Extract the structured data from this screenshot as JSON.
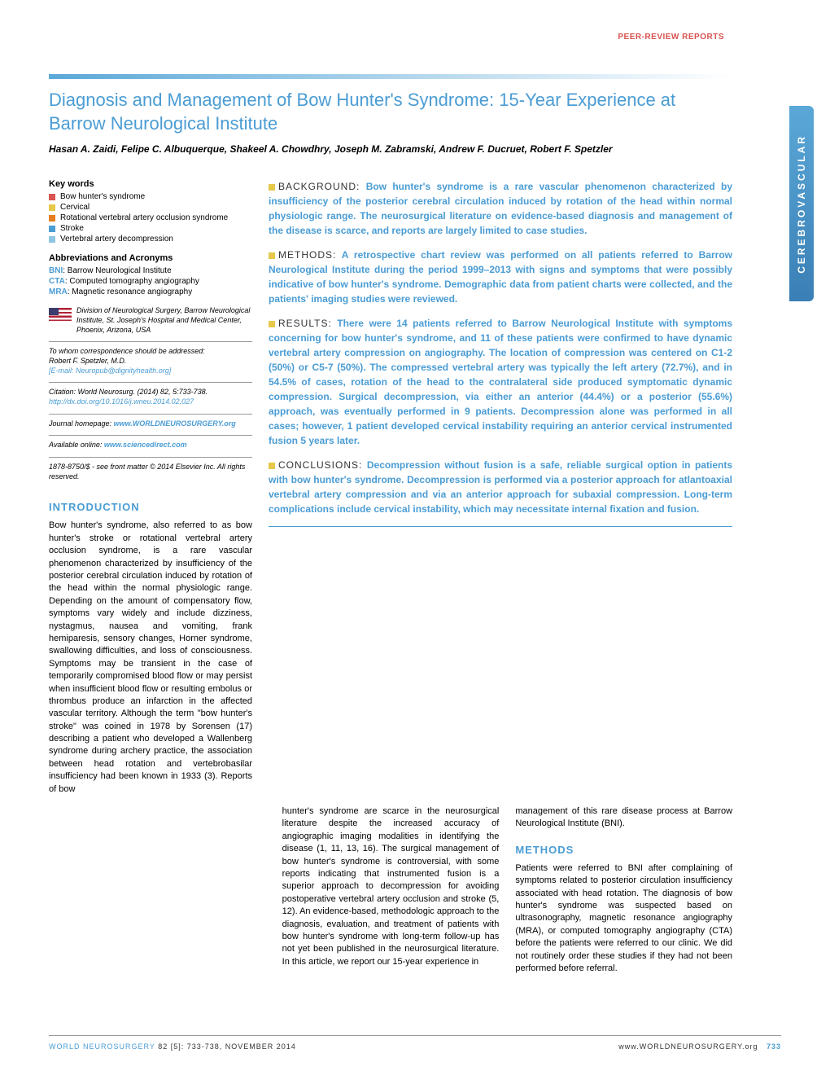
{
  "header_label": "PEER-REVIEW REPORTS",
  "side_tab": "CEREBROVASCULAR",
  "title": "Diagnosis and Management of Bow Hunter's Syndrome: 15-Year Experience at Barrow Neurological Institute",
  "authors": "Hasan A. Zaidi, Felipe C. Albuquerque, Shakeel A. Chowdhry, Joseph M. Zabramski, Andrew F. Ducruet, Robert F. Spetzler",
  "keywords_hdr": "Key words",
  "keywords": [
    "Bow hunter's syndrome",
    "Cervical",
    "Rotational vertebral artery occlusion syndrome",
    "Stroke",
    "Vertebral artery decompression"
  ],
  "keyword_bullet_colors": [
    "b-red",
    "b-yellow",
    "b-orange",
    "b-blue",
    "b-lblue"
  ],
  "abbrev_hdr": "Abbreviations and Acronyms",
  "abbrevs": [
    {
      "key": "BNI",
      "val": ": Barrow Neurological Institute"
    },
    {
      "key": "CTA",
      "val": ": Computed tomography angiography"
    },
    {
      "key": "MRA",
      "val": ": Magnetic resonance angiography"
    }
  ],
  "affiliation": "Division of Neurological Surgery, Barrow Neurological Institute, St. Joseph's Hospital and Medical Center, Phoenix, Arizona, USA",
  "corr_label": "To whom correspondence should be addressed:",
  "corr_name": "Robert F. Spetzler, M.D.",
  "corr_email": "[E-mail: Neuropub@dignityhealth.org]",
  "citation": "Citation: World Neurosurg. (2014) 82, 5:733-738.",
  "doi": "http://dx.doi.org/10.1016/j.wneu.2014.02.027",
  "journal_hp_label": "Journal homepage: ",
  "journal_hp": "www.WORLDNEUROSURGERY.org",
  "avail_label": "Available online: ",
  "avail_url": "www.sciencedirect.com",
  "copyright": "1878-8750/$ - see front matter © 2014 Elsevier Inc. All rights reserved.",
  "abstract": {
    "background_label": "BACKGROUND:",
    "background": "Bow hunter's syndrome is a rare vascular phenomenon characterized by insufficiency of the posterior cerebral circulation induced by rotation of the head within normal physiologic range. The neurosurgical literature on evidence-based diagnosis and management of the disease is scarce, and reports are largely limited to case studies.",
    "methods_label": "METHODS:",
    "methods": "A retrospective chart review was performed on all patients referred to Barrow Neurological Institute during the period 1999–2013 with signs and symptoms that were possibly indicative of bow hunter's syndrome. Demographic data from patient charts were collected, and the patients' imaging studies were reviewed.",
    "results_label": "RESULTS:",
    "results": "There were 14 patients referred to Barrow Neurological Institute with symptoms concerning for bow hunter's syndrome, and 11 of these patients were confirmed to have dynamic vertebral artery compression on angiography. The location of compression was centered on C1-2 (50%) or C5-7 (50%). The compressed vertebral artery was typically the left artery (72.7%), and in 54.5% of cases, rotation of the head to the contralateral side produced symptomatic dynamic compression. Surgical decompression, via either an anterior (44.4%) or a posterior (55.6%) approach, was eventually performed in 9 patients. Decompression alone was performed in all cases; however, 1 patient developed cervical instability requiring an anterior cervical instrumented fusion 5 years later.",
    "conclusions_label": "CONCLUSIONS:",
    "conclusions": "Decompression without fusion is a safe, reliable surgical option in patients with bow hunter's syndrome. Decompression is performed via a posterior approach for atlantoaxial vertebral artery compression and via an anterior approach for subaxial compression. Long-term complications include cervical instability, which may necessitate internal fixation and fusion."
  },
  "intro_hdr": "INTRODUCTION",
  "intro_text": "Bow hunter's syndrome, also referred to as bow hunter's stroke or rotational vertebral artery occlusion syndrome, is a rare vascular phenomenon characterized by insufficiency of the posterior cerebral circulation induced by rotation of the head within the normal physiologic range. Depending on the amount of compensatory flow, symptoms vary widely and include dizziness, nystagmus, nausea and vomiting, frank hemiparesis, sensory changes, Horner syndrome, swallowing difficulties, and loss of consciousness. Symptoms may be transient in the case of temporarily compromised blood flow or may persist when insufficient blood flow or resulting embolus or thrombus produce an infarction in the affected vascular territory. Although the term \"bow hunter's stroke\" was coined in 1978 by Sorensen (17) describing a patient who developed a Wallenberg syndrome during archery practice, the association between head rotation and vertebrobasilar insufficiency had been known in 1933 (3). Reports of bow",
  "body_col2": "hunter's syndrome are scarce in the neurosurgical literature despite the increased accuracy of angiographic imaging modalities in identifying the disease (1, 11, 13, 16). The surgical management of bow hunter's syndrome is controversial, with some reports indicating that instrumented fusion is a superior approach to decompression for avoiding postoperative vertebral artery occlusion and stroke (5, 12). An evidence-based, methodologic approach to the diagnosis, evaluation, and treatment of patients with bow hunter's syndrome with long-term follow-up has not yet been published in the neurosurgical literature. In this article, we report our 15-year experience in",
  "body_col3_top": "management of this rare disease process at Barrow Neurological Institute (BNI).",
  "methods_hdr": "METHODS",
  "methods_text": "Patients were referred to BNI after complaining of symptoms related to posterior circulation insufficiency associated with head rotation. The diagnosis of bow hunter's syndrome was suspected based on ultrasonography, magnetic resonance angiography (MRA), or computed tomography angiography (CTA) before the patients were referred to our clinic. We did not routinely order these studies if they had not been performed before referral.",
  "footer": {
    "journal": "WORLD NEUROSURGERY",
    "issue": " 82 [5]: 733-738, NOVEMBER 2014",
    "url": "www.WORLDNEUROSURGERY.org",
    "page": "733"
  }
}
